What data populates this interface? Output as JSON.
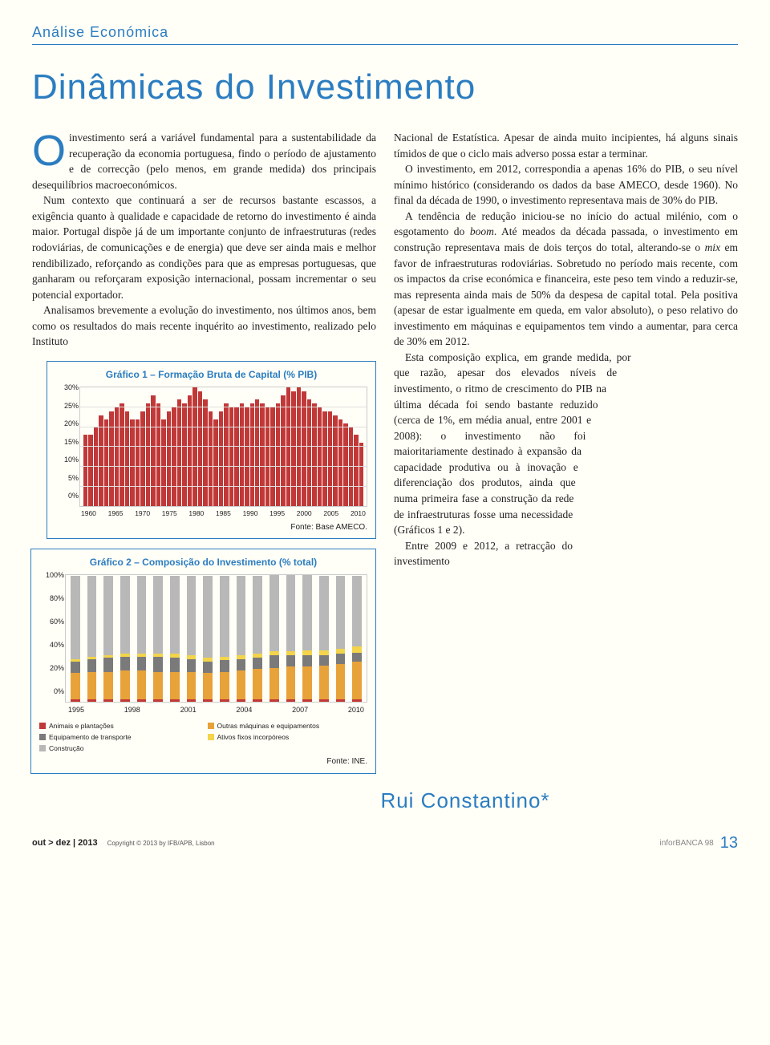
{
  "section": "Análise Económica",
  "title": "Dinâmicas do Investimento",
  "dropcap": "O",
  "col1": {
    "p1": "investimento será a variável fundamental para a sustentabilidade da recuperação da economia portuguesa, findo o período de ajustamento e de correcção (pelo menos, em grande medida) dos principais desequilíbrios macroeconómicos.",
    "p2": "Num contexto que continuará a ser de recursos bastante escassos, a exigência quanto à qualidade e capacidade de retorno do investimento é ainda maior. Portugal dispõe já de um importante conjunto de infraestruturas (redes rodoviárias, de comunicações e de energia) que deve ser ainda mais e melhor rendibilizado, reforçando as condições para que as empresas portuguesas, que ganharam ou reforçaram exposição internacional, possam incrementar o seu potencial exportador.",
    "p3": "Analisamos brevemente a evolução do investimento, nos últimos anos, bem como os resultados do mais recente inquérito ao investimento, realizado pelo Instituto"
  },
  "col2": {
    "p1": "Nacional de Estatística. Apesar de ainda muito incipientes, há alguns sinais tímidos de que o ciclo mais adverso possa estar a terminar.",
    "p2": "O investimento, em 2012, correspondia a apenas 16% do PIB, o seu nível mínimo histórico (considerando os dados da base AMECO, desde 1960). No final da década de 1990, o investimento representava mais de 30% do PIB.",
    "p3a": "A tendência de redução iniciou-se no início do actual milénio, com o esgotamento do ",
    "p3boom": "boom",
    "p3b": ". Até meados da década passada, o investimento em construção representava mais de dois terços do total, alterando-se o ",
    "p3mix": "mix",
    "p3c": " em favor de infraestruturas rodoviárias. Sobretudo no período mais recente, com os impactos da crise económica e financeira, este peso tem vindo a reduzir-se, mas representa ainda mais de 50% da despesa de capital total. Pela positiva (apesar de estar igualmente em queda, em valor absoluto), o peso relativo do investimento em máquinas e equipamentos tem vindo a aumentar, para cerca de 30% em 2012.",
    "p4": "Esta composição explica, em grande medida, por que razão, apesar dos elevados níveis de investimento, o ritmo de crescimento do PIB na última década foi sendo bastante reduzido (cerca de 1%, em média anual, entre 2001 e 2008): o investimento não foi maioritariamente destinado à expansão da capacidade produtiva ou à inovação e diferenciação dos produtos, ainda que numa primeira fase a construção da rede de infraestruturas fosse uma necessidade (Gráficos 1 e 2).",
    "p5": "Entre 2009 e 2012, a retracção do investimento"
  },
  "chart1": {
    "title": "Gráfico 1 – Formação Bruta de Capital (% PIB)",
    "type": "bar",
    "ylim": [
      0,
      30
    ],
    "ytick_step": 5,
    "yticks": [
      "30%",
      "25%",
      "20%",
      "15%",
      "10%",
      "5%",
      "0%"
    ],
    "xticks": [
      "1960",
      "1965",
      "1970",
      "1975",
      "1980",
      "1985",
      "1990",
      "1995",
      "2000",
      "2005",
      "2010"
    ],
    "bar_color": "#c13838",
    "grid_color": "#e0e0e0",
    "values": [
      18,
      18,
      20,
      23,
      22,
      24,
      25,
      26,
      24,
      22,
      22,
      24,
      26,
      28,
      26,
      22,
      24,
      25,
      27,
      26,
      28,
      30,
      29,
      27,
      24,
      22,
      24,
      26,
      25,
      25,
      26,
      25,
      26,
      27,
      26,
      25,
      25,
      26,
      28,
      30,
      29,
      30,
      29,
      27,
      26,
      25,
      24,
      24,
      23,
      22,
      21,
      20,
      18,
      16
    ],
    "source": "Fonte: Base AMECO."
  },
  "chart2": {
    "title": "Gráfico 2 – Composição do Investimento (% total)",
    "type": "stacked-bar",
    "ylim": [
      0,
      100
    ],
    "ytick_step": 20,
    "yticks": [
      "100%",
      "80%",
      "60%",
      "40%",
      "20%",
      "0%"
    ],
    "xticks": [
      "1995",
      "1998",
      "2001",
      "2004",
      "2007",
      "2010"
    ],
    "series": [
      {
        "name": "Animais e plantações",
        "color": "#c13838"
      },
      {
        "name": "Outras máquinas e equipamentos",
        "color": "#e8a23a"
      },
      {
        "name": "Equipamento de transporte",
        "color": "#7a7a7a"
      },
      {
        "name": "Ativos fixos incorpóreos",
        "color": "#f3d44a"
      },
      {
        "name": "Construção",
        "color": "#b8b8b8"
      }
    ],
    "legend_labels": {
      "l1": "Animais e plantações",
      "l2": "Outras máquinas e equipamentos",
      "l3": "Equipamento de transporte",
      "l4": "Ativos fixos incorpóreos",
      "l5": "Construção"
    },
    "rows": [
      [
        2,
        21,
        9,
        2,
        66
      ],
      [
        2,
        22,
        10,
        2,
        64
      ],
      [
        2,
        22,
        11,
        2,
        63
      ],
      [
        2,
        23,
        11,
        2,
        62
      ],
      [
        2,
        23,
        11,
        2,
        62
      ],
      [
        2,
        22,
        12,
        2,
        62
      ],
      [
        2,
        22,
        11,
        3,
        62
      ],
      [
        2,
        22,
        10,
        3,
        63
      ],
      [
        2,
        21,
        9,
        3,
        65
      ],
      [
        2,
        22,
        9,
        3,
        64
      ],
      [
        2,
        23,
        9,
        3,
        63
      ],
      [
        2,
        24,
        9,
        3,
        62
      ],
      [
        2,
        25,
        10,
        3,
        60
      ],
      [
        2,
        26,
        9,
        3,
        60
      ],
      [
        2,
        26,
        9,
        4,
        59
      ],
      [
        2,
        27,
        8,
        4,
        59
      ],
      [
        2,
        28,
        8,
        4,
        58
      ],
      [
        2,
        30,
        7,
        5,
        56
      ]
    ],
    "source": "Fonte: INE."
  },
  "author": "Rui Constantino*",
  "footer": {
    "issue": "out > dez | 2013",
    "copy": "Copyright © 2013 by IFB/APB, Lisbon",
    "brand": "inforBANCA 98",
    "page": "13"
  }
}
